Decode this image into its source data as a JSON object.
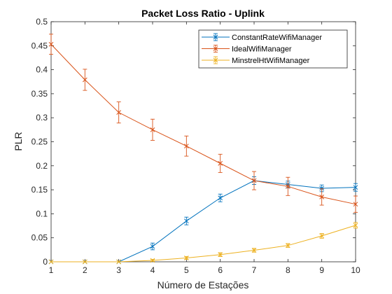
{
  "chart_data": {
    "type": "line",
    "title": "Packet Loss Ratio - Uplink",
    "xlabel": "Número de Estações",
    "ylabel": "PLR",
    "xlim": [
      1,
      10
    ],
    "ylim": [
      0,
      0.5
    ],
    "xticks": [
      "1",
      "2",
      "3",
      "4",
      "5",
      "6",
      "7",
      "8",
      "9",
      "10"
    ],
    "yticks": [
      "0",
      "0.05",
      "0.1",
      "0.15",
      "0.2",
      "0.25",
      "0.3",
      "0.35",
      "0.4",
      "0.45",
      "0.5"
    ],
    "grid": false,
    "legend_position": "top-right",
    "x": [
      1,
      2,
      3,
      4,
      5,
      6,
      7,
      8,
      9,
      10
    ],
    "series": [
      {
        "name": "ConstantRateWifiManager",
        "color": "#0072BD",
        "marker": "x",
        "values": [
          0,
          0,
          0,
          0.032,
          0.085,
          0.133,
          0.169,
          0.161,
          0.153,
          0.155
        ],
        "errors": [
          0,
          0,
          0,
          0.007,
          0.008,
          0.008,
          0.008,
          0.007,
          0.007,
          0.008
        ]
      },
      {
        "name": "IdealWifiManager",
        "color": "#D95319",
        "marker": "x",
        "values": [
          0.453,
          0.379,
          0.311,
          0.275,
          0.241,
          0.205,
          0.169,
          0.157,
          0.135,
          0.12
        ],
        "errors": [
          0.021,
          0.022,
          0.022,
          0.022,
          0.021,
          0.019,
          0.019,
          0.019,
          0.017,
          0.017
        ]
      },
      {
        "name": "MinstrelHtWifiManager",
        "color": "#EDB120",
        "marker": "x",
        "values": [
          0,
          0,
          0,
          0.003,
          0.008,
          0.015,
          0.024,
          0.034,
          0.054,
          0.076
        ],
        "errors": [
          0,
          0,
          0,
          0.002,
          0.003,
          0.004,
          0.004,
          0.004,
          0.005,
          0.006
        ]
      }
    ]
  }
}
